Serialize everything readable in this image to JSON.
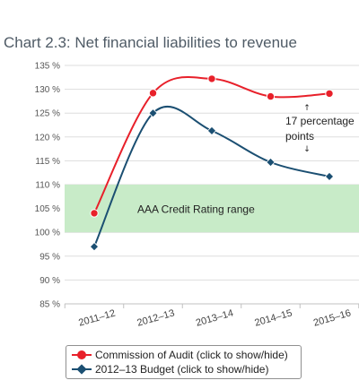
{
  "title": "Chart 2.3: Net financial liabilities to revenue",
  "chart_data": {
    "type": "line",
    "title": "Chart 2.3: Net financial liabilities to revenue",
    "categories": [
      "2011–12",
      "2012–13",
      "2013–14",
      "2014–15",
      "2015–16"
    ],
    "series": [
      {
        "name": "Commission of Audit (click to show/hide)",
        "color": "#e8202a",
        "marker": "circle",
        "values": [
          104,
          129.2,
          132.2,
          128.5,
          129.1
        ]
      },
      {
        "name": "2012–13 Budget (click to show/hide)",
        "color": "#1b4f72",
        "marker": "diamond",
        "values": [
          97,
          125,
          121.3,
          114.7,
          111.7
        ]
      }
    ],
    "y_ticks": [
      "85 %",
      "90 %",
      "95 %",
      "100 %",
      "105 %",
      "110 %",
      "115 %",
      "120 %",
      "125 %",
      "130 %",
      "135 %"
    ],
    "ylim": [
      85,
      135
    ],
    "band": {
      "from": 100,
      "to": 110,
      "label": "AAA Credit Rating range",
      "color": "#c8ebc8"
    },
    "annotation": {
      "up_arrow": "↑",
      "line1": "17 percentage",
      "line2": "points",
      "down_arrow": "↓"
    },
    "xlabel": "",
    "ylabel": "",
    "legend_position": "bottom",
    "grid": true
  }
}
